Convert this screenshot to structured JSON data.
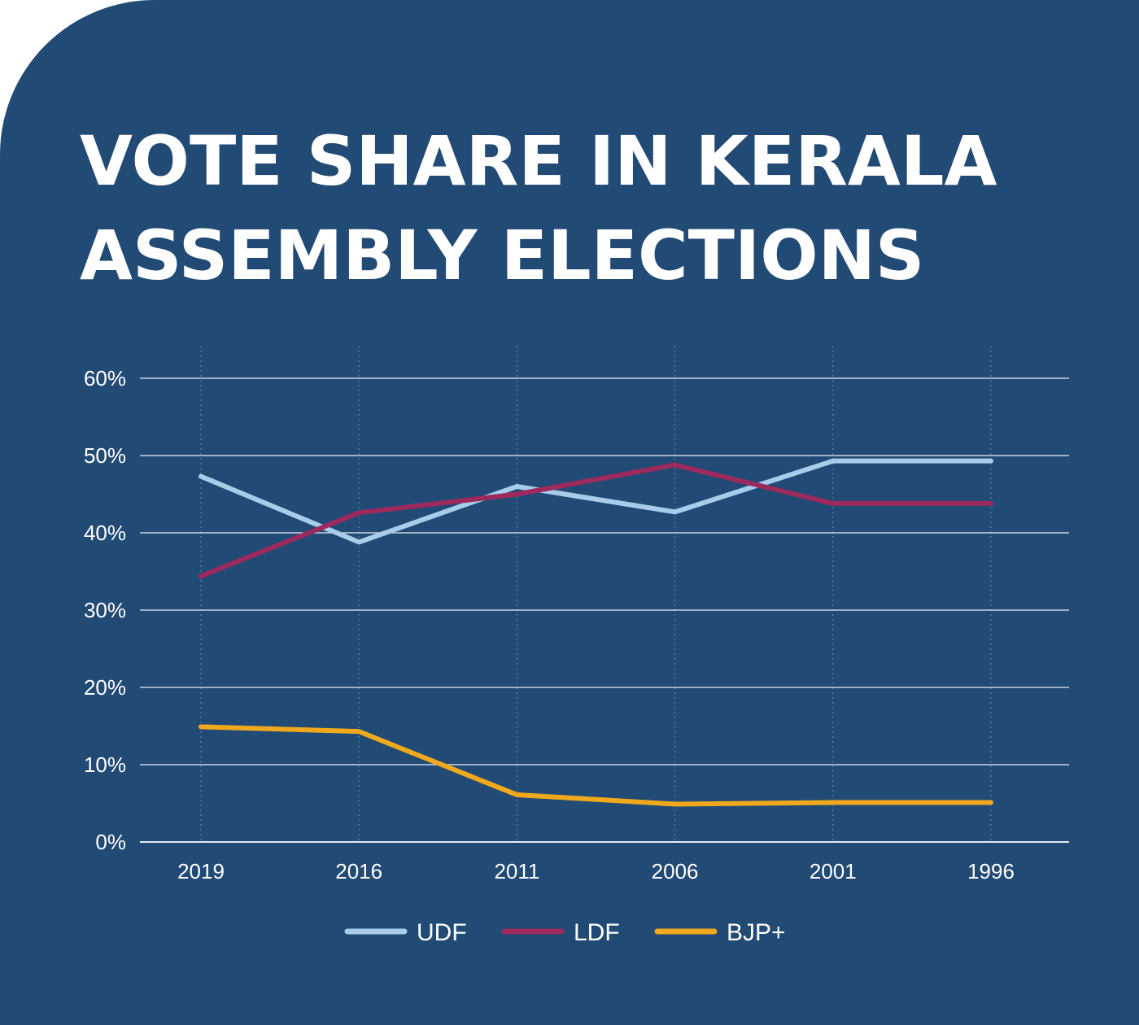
{
  "title_line1": "VOTE SHARE IN KERALA",
  "title_line2": "ASSEMBLY ELECTIONS",
  "colors": {
    "background": "#214a75",
    "UDF": "#a8cdea",
    "LDF": "#9c2a5e",
    "BJP+": "#f0a81c",
    "grid": "#ffffff"
  },
  "chart_data": {
    "type": "line",
    "title": "VOTE SHARE IN KERALA ASSEMBLY ELECTIONS",
    "x": [
      "2019",
      "2016",
      "2011",
      "2006",
      "2001",
      "1996"
    ],
    "ylim": [
      0,
      60
    ],
    "y_ticks": [
      0,
      10,
      20,
      30,
      40,
      50,
      60
    ],
    "y_tick_labels": [
      "0%",
      "10%",
      "20%",
      "30%",
      "40%",
      "50%",
      "60%"
    ],
    "grid": true,
    "legend_position": "bottom",
    "series": [
      {
        "name": "UDF",
        "values": [
          47.3,
          38.8,
          46.0,
          42.7,
          49.3,
          49.3
        ]
      },
      {
        "name": "LDF",
        "values": [
          34.4,
          42.6,
          45.0,
          48.8,
          43.8,
          43.8
        ]
      },
      {
        "name": "BJP+",
        "values": [
          14.9,
          14.3,
          6.1,
          4.9,
          5.1,
          5.1
        ]
      }
    ]
  }
}
